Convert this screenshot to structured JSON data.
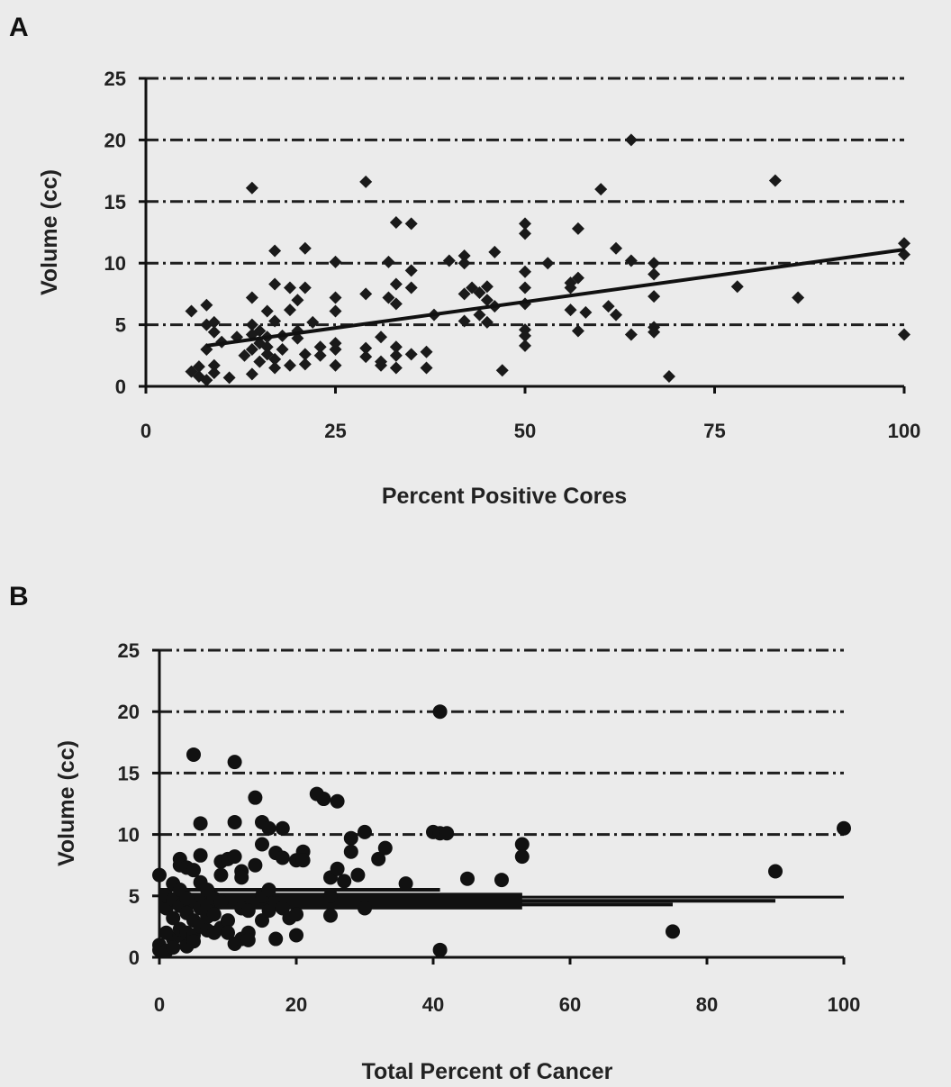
{
  "chart_data": [
    {
      "panel": "A",
      "type": "scatter",
      "xlabel": "Percent Positive Cores",
      "ylabel": "Volume (cc)",
      "xlim": [
        0,
        100
      ],
      "ylim": [
        0,
        25
      ],
      "xticks": [
        "0",
        "25",
        "50",
        "75",
        "100"
      ],
      "yticks": [
        "0",
        "5",
        "10",
        "15",
        "20",
        "25"
      ],
      "grid": "horizontal dash-dot at y = 5, 10, 15, 20, 25",
      "marker": "diamond",
      "color": "#1a1a1a",
      "trendline": {
        "x": [
          8,
          100
        ],
        "y": [
          3.3,
          11.1
        ]
      },
      "points": [
        [
          6,
          6.1
        ],
        [
          6,
          1.2
        ],
        [
          7,
          0.8
        ],
        [
          7,
          1.6
        ],
        [
          8,
          0.5
        ],
        [
          8,
          3.0
        ],
        [
          8,
          5.0
        ],
        [
          8,
          6.6
        ],
        [
          9,
          1.1
        ],
        [
          9,
          1.7
        ],
        [
          9,
          4.4
        ],
        [
          9,
          5.2
        ],
        [
          10,
          3.6
        ],
        [
          11,
          0.7
        ],
        [
          12,
          4.0
        ],
        [
          13,
          2.5
        ],
        [
          14,
          3.0
        ],
        [
          14,
          4.2
        ],
        [
          14,
          5.0
        ],
        [
          14,
          7.2
        ],
        [
          14,
          1.0
        ],
        [
          14,
          16.1
        ],
        [
          15,
          2.0
        ],
        [
          15,
          3.5
        ],
        [
          15,
          4.5
        ],
        [
          16,
          6.1
        ],
        [
          16,
          2.6
        ],
        [
          16,
          4.0
        ],
        [
          16,
          3.2
        ],
        [
          17,
          1.5
        ],
        [
          17,
          11.0
        ],
        [
          17,
          8.3
        ],
        [
          17,
          5.3
        ],
        [
          17,
          2.2
        ],
        [
          18,
          4.1
        ],
        [
          18,
          3.0
        ],
        [
          19,
          6.2
        ],
        [
          19,
          8.0
        ],
        [
          19,
          1.7
        ],
        [
          20,
          3.9
        ],
        [
          20,
          7.0
        ],
        [
          20,
          4.5
        ],
        [
          21,
          8.0
        ],
        [
          21,
          11.2
        ],
        [
          21,
          2.6
        ],
        [
          21,
          1.8
        ],
        [
          22,
          5.2
        ],
        [
          23,
          3.2
        ],
        [
          23,
          2.5
        ],
        [
          25,
          10.1
        ],
        [
          25,
          7.2
        ],
        [
          25,
          6.1
        ],
        [
          25,
          3.0
        ],
        [
          25,
          3.5
        ],
        [
          25,
          1.7
        ],
        [
          29,
          16.6
        ],
        [
          29,
          7.5
        ],
        [
          29,
          3.1
        ],
        [
          29,
          2.4
        ],
        [
          31,
          2.0
        ],
        [
          31,
          1.7
        ],
        [
          31,
          4.0
        ],
        [
          32,
          10.1
        ],
        [
          32,
          7.2
        ],
        [
          33,
          13.3
        ],
        [
          33,
          3.2
        ],
        [
          33,
          8.3
        ],
        [
          33,
          6.7
        ],
        [
          33,
          2.5
        ],
        [
          33,
          1.5
        ],
        [
          35,
          2.6
        ],
        [
          35,
          13.2
        ],
        [
          35,
          9.4
        ],
        [
          35,
          8.0
        ],
        [
          37,
          2.8
        ],
        [
          37,
          1.5
        ],
        [
          38,
          5.8
        ],
        [
          40,
          10.2
        ],
        [
          42,
          10.6
        ],
        [
          42,
          10.0
        ],
        [
          42,
          7.5
        ],
        [
          42,
          5.3
        ],
        [
          43,
          8.0
        ],
        [
          44,
          5.8
        ],
        [
          44,
          7.6
        ],
        [
          45,
          5.2
        ],
        [
          45,
          8.1
        ],
        [
          45,
          7.0
        ],
        [
          46,
          6.5
        ],
        [
          46,
          10.9
        ],
        [
          47,
          1.3
        ],
        [
          50,
          13.2
        ],
        [
          50,
          12.4
        ],
        [
          50,
          9.3
        ],
        [
          50,
          8.0
        ],
        [
          50,
          6.7
        ],
        [
          50,
          4.6
        ],
        [
          50,
          4.1
        ],
        [
          50,
          3.3
        ],
        [
          53,
          10.0
        ],
        [
          56,
          8.4
        ],
        [
          56,
          8.0
        ],
        [
          56,
          6.2
        ],
        [
          57,
          12.8
        ],
        [
          57,
          8.8
        ],
        [
          57,
          4.5
        ],
        [
          58,
          6.0
        ],
        [
          60,
          16.0
        ],
        [
          61,
          6.5
        ],
        [
          62,
          11.2
        ],
        [
          62,
          5.8
        ],
        [
          64,
          20.0
        ],
        [
          64,
          10.2
        ],
        [
          64,
          4.2
        ],
        [
          67,
          10.0
        ],
        [
          67,
          9.1
        ],
        [
          67,
          7.3
        ],
        [
          67,
          4.8
        ],
        [
          67,
          4.4
        ],
        [
          69,
          0.8
        ],
        [
          78,
          8.1
        ],
        [
          83,
          16.7
        ],
        [
          86,
          7.2
        ],
        [
          100,
          11.6
        ],
        [
          100,
          10.7
        ],
        [
          100,
          4.2
        ]
      ]
    },
    {
      "panel": "B",
      "type": "scatter",
      "xlabel": "Total Percent of Cancer",
      "ylabel": "Volume (cc)",
      "xlim": [
        0,
        100
      ],
      "ylim": [
        0,
        25
      ],
      "xticks": [
        "0",
        "20",
        "40",
        "60",
        "80",
        "100"
      ],
      "yticks": [
        "0",
        "5",
        "10",
        "15",
        "20",
        "25"
      ],
      "grid": "horizontal dash-dot at y = 10, 15, 20, 25",
      "marker": "circle",
      "color": "#111111",
      "points": [
        [
          0,
          6.7
        ],
        [
          0,
          1.0
        ],
        [
          0,
          0.6
        ],
        [
          1,
          2.0
        ],
        [
          1,
          4.0
        ],
        [
          1,
          5.0
        ],
        [
          1,
          0.5
        ],
        [
          2,
          3.2
        ],
        [
          2,
          4.7
        ],
        [
          2,
          1.5
        ],
        [
          2,
          6.0
        ],
        [
          2,
          0.8
        ],
        [
          3,
          8.0
        ],
        [
          3,
          7.5
        ],
        [
          3,
          1.8
        ],
        [
          3,
          2.3
        ],
        [
          3,
          5.5
        ],
        [
          3,
          4.2
        ],
        [
          4,
          7.3
        ],
        [
          4,
          4.8
        ],
        [
          4,
          3.6
        ],
        [
          4,
          2.0
        ],
        [
          4,
          1.1
        ],
        [
          4,
          0.9
        ],
        [
          5,
          16.5
        ],
        [
          5,
          7.1
        ],
        [
          5,
          3.0
        ],
        [
          5,
          1.8
        ],
        [
          5,
          1.3
        ],
        [
          6,
          10.9
        ],
        [
          6,
          8.3
        ],
        [
          6,
          6.1
        ],
        [
          6,
          4.0
        ],
        [
          6,
          2.5
        ],
        [
          7,
          5.5
        ],
        [
          7,
          4.2
        ],
        [
          7,
          3.3
        ],
        [
          7,
          2.2
        ],
        [
          8,
          4.8
        ],
        [
          8,
          3.5
        ],
        [
          8,
          2.0
        ],
        [
          9,
          7.8
        ],
        [
          9,
          6.7
        ],
        [
          9,
          4.5
        ],
        [
          9,
          2.4
        ],
        [
          10,
          8.0
        ],
        [
          10,
          3.0
        ],
        [
          10,
          2.0
        ],
        [
          11,
          15.9
        ],
        [
          11,
          11.0
        ],
        [
          11,
          8.2
        ],
        [
          11,
          1.1
        ],
        [
          12,
          7.0
        ],
        [
          12,
          6.5
        ],
        [
          12,
          4.0
        ],
        [
          12,
          1.5
        ],
        [
          13,
          2.0
        ],
        [
          13,
          1.4
        ],
        [
          13,
          3.8
        ],
        [
          14,
          13.0
        ],
        [
          14,
          7.5
        ],
        [
          15,
          11.0
        ],
        [
          15,
          9.2
        ],
        [
          15,
          5.0
        ],
        [
          15,
          3.0
        ],
        [
          16,
          10.5
        ],
        [
          16,
          5.5
        ],
        [
          16,
          3.8
        ],
        [
          17,
          8.5
        ],
        [
          17,
          4.4
        ],
        [
          17,
          1.5
        ],
        [
          18,
          10.5
        ],
        [
          18,
          8.1
        ],
        [
          18,
          4.0
        ],
        [
          19,
          3.2
        ],
        [
          20,
          7.9
        ],
        [
          20,
          3.5
        ],
        [
          20,
          1.8
        ],
        [
          21,
          8.6
        ],
        [
          21,
          7.9
        ],
        [
          23,
          13.3
        ],
        [
          24,
          12.9
        ],
        [
          25,
          6.5
        ],
        [
          25,
          5.0
        ],
        [
          25,
          3.4
        ],
        [
          26,
          12.7
        ],
        [
          26,
          7.2
        ],
        [
          27,
          6.2
        ],
        [
          28,
          9.7
        ],
        [
          28,
          8.6
        ],
        [
          29,
          6.7
        ],
        [
          30,
          10.2
        ],
        [
          30,
          4.0
        ],
        [
          32,
          8.0
        ],
        [
          33,
          8.9
        ],
        [
          36,
          6.0
        ],
        [
          40,
          10.2
        ],
        [
          41,
          20.0
        ],
        [
          41,
          10.1
        ],
        [
          41,
          0.6
        ],
        [
          42,
          10.1
        ],
        [
          45,
          6.4
        ],
        [
          50,
          6.3
        ],
        [
          53,
          9.2
        ],
        [
          53,
          8.2
        ],
        [
          75,
          2.1
        ],
        [
          90,
          7.0
        ],
        [
          100,
          10.5
        ]
      ],
      "horizontal_bars_near_y5": [
        {
          "x_from": 0,
          "x_to": 100,
          "y": 4.9
        },
        {
          "x_from": 0,
          "x_to": 90,
          "y": 4.6
        },
        {
          "x_from": 0,
          "x_to": 75,
          "y": 4.3
        },
        {
          "x_from": 0,
          "x_to": 53,
          "y": 5.1
        },
        {
          "x_from": 0,
          "x_to": 41,
          "y": 5.5
        }
      ]
    }
  ]
}
